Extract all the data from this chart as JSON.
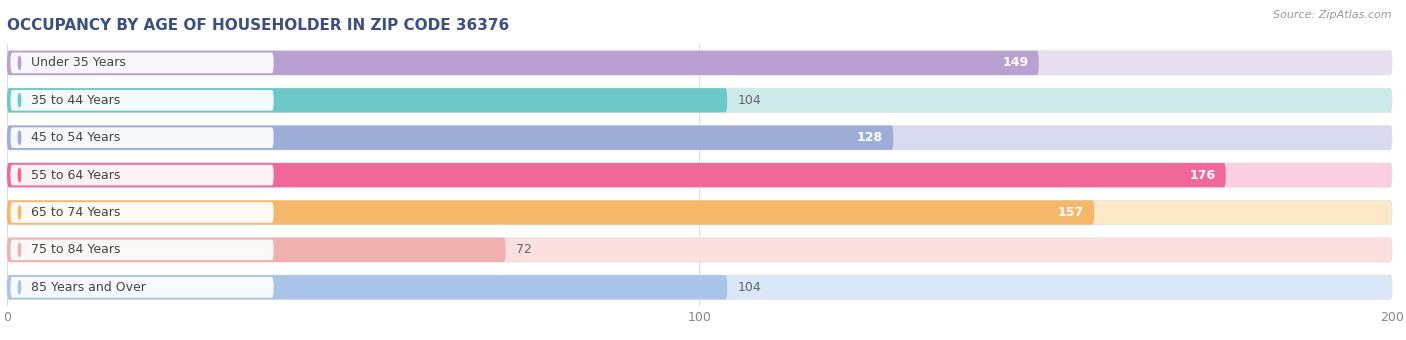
{
  "title": "OCCUPANCY BY AGE OF HOUSEHOLDER IN ZIP CODE 36376",
  "source": "Source: ZipAtlas.com",
  "categories": [
    "Under 35 Years",
    "35 to 44 Years",
    "45 to 54 Years",
    "55 to 64 Years",
    "65 to 74 Years",
    "75 to 84 Years",
    "85 Years and Over"
  ],
  "values": [
    149,
    104,
    128,
    176,
    157,
    72,
    104
  ],
  "bar_colors": [
    "#b8a0d0",
    "#6dc8c8",
    "#9dadd8",
    "#f06898",
    "#f5b86a",
    "#f0b0b0",
    "#a8c4e8"
  ],
  "bar_bg_colors": [
    "#e8e0f0",
    "#cceaea",
    "#d8daf0",
    "#fad0e0",
    "#fde8c8",
    "#fce0e0",
    "#d8e8f8"
  ],
  "xlim": [
    0,
    200
  ],
  "xticks": [
    0,
    100,
    200
  ],
  "value_fontsize": 9,
  "label_fontsize": 9,
  "title_fontsize": 11,
  "bar_height": 0.65,
  "figsize": [
    14.06,
    3.4
  ],
  "dpi": 100,
  "bg_color": "#ffffff",
  "value_inside_color": "#ffffff",
  "value_outside_color": "#666666",
  "label_text_color": "#444444",
  "title_color": "#3a5080",
  "source_color": "#999999",
  "grid_color": "#dddddd"
}
